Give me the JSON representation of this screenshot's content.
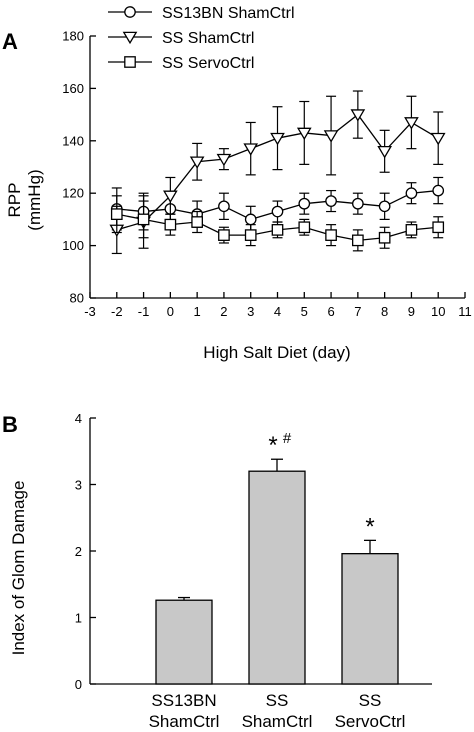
{
  "chart_data": [
    {
      "type": "line",
      "panel_label": "A",
      "xlabel": "High Salt Diet (day)",
      "ylabel_line1": "RPP",
      "ylabel_line2": "(mmHg)",
      "xlim": [
        -3,
        11
      ],
      "ylim": [
        80,
        180
      ],
      "xticks": [
        -3,
        -2,
        -1,
        0,
        1,
        2,
        3,
        4,
        5,
        6,
        7,
        8,
        9,
        10,
        11
      ],
      "yticks": [
        80,
        100,
        120,
        140,
        160,
        180
      ],
      "x": [
        -2,
        -1,
        0,
        1,
        2,
        3,
        4,
        5,
        6,
        7,
        8,
        9,
        10
      ],
      "legend_position": "top-left",
      "series": [
        {
          "name": "SS13BN ShamCtrl",
          "marker": "circle",
          "values": [
            114,
            113,
            114,
            112,
            115,
            110,
            113,
            116,
            117,
            116,
            115,
            120,
            121
          ],
          "errors": [
            8,
            7,
            6,
            5,
            5,
            5,
            4,
            4,
            4,
            4,
            5,
            4,
            5
          ]
        },
        {
          "name": "SS ShamCtrl",
          "marker": "triangle-down",
          "values": [
            106,
            109,
            119,
            132,
            133,
            137,
            141,
            143,
            142,
            150,
            136,
            147,
            141
          ],
          "errors": [
            9,
            10,
            7,
            7,
            4,
            10,
            12,
            12,
            15,
            9,
            8,
            10,
            10
          ]
        },
        {
          "name": "SS ServoCtrl",
          "marker": "square",
          "values": [
            112,
            110,
            108,
            109,
            104,
            104,
            106,
            107,
            104,
            102,
            103,
            106,
            107
          ],
          "errors": [
            7,
            7,
            4,
            4,
            3,
            4,
            3,
            3,
            4,
            4,
            4,
            3,
            4
          ]
        }
      ]
    },
    {
      "type": "bar",
      "panel_label": "B",
      "ylabel": "Index of Glom Damage",
      "xlabel": "",
      "ylim": [
        0,
        4
      ],
      "yticks": [
        0,
        1,
        2,
        3,
        4
      ],
      "categories": [
        {
          "line1": "SS13BN",
          "line2": "ShamCtrl"
        },
        {
          "line1": "SS",
          "line2": "ShamCtrl"
        },
        {
          "line1": "SS",
          "line2": "ServoCtrl"
        }
      ],
      "values": [
        1.26,
        3.2,
        1.96
      ],
      "errors": [
        0.04,
        0.18,
        0.2
      ],
      "annotations": [
        {
          "star": "",
          "sup": ""
        },
        {
          "star": "*",
          "sup": "#"
        },
        {
          "star": "*",
          "sup": ""
        }
      ],
      "bar_color": "#c8c8c8"
    }
  ]
}
